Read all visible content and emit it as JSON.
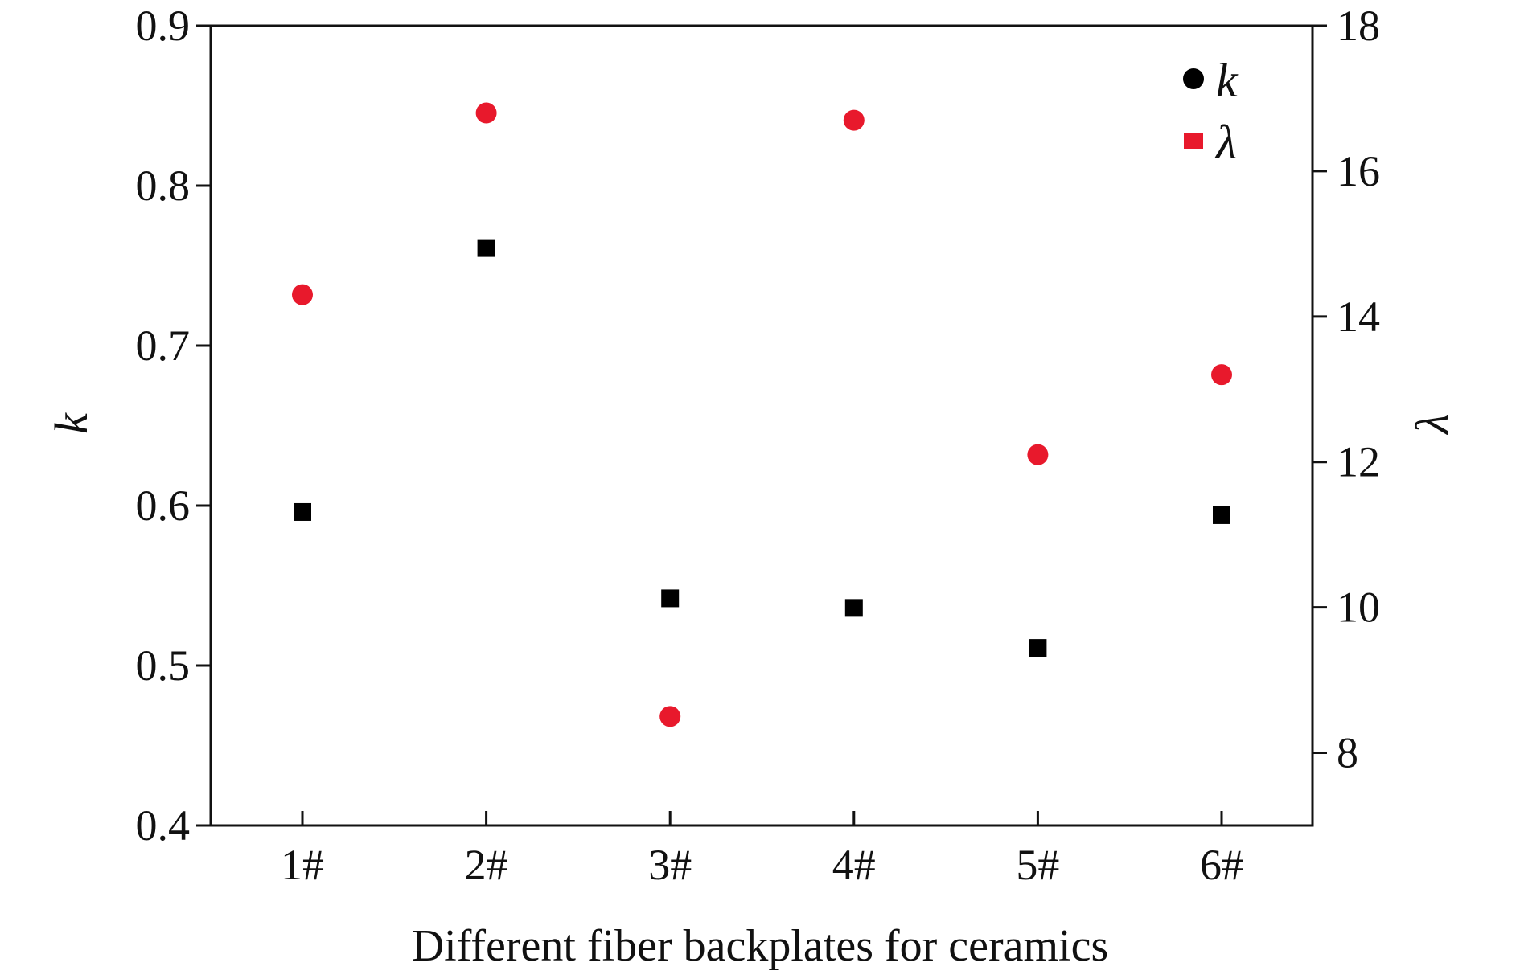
{
  "chart_data": {
    "type": "scatter",
    "categories": [
      "1#",
      "2#",
      "3#",
      "4#",
      "5#",
      "6#"
    ],
    "xlabel": "Different fiber backplates for ceramics",
    "ylabel_left": "k",
    "ylabel_right": "λ",
    "ylim_left": [
      0.4,
      0.9
    ],
    "yticks_left": [
      "0.4",
      "0.5",
      "0.6",
      "0.7",
      "0.8",
      "0.9"
    ],
    "ylim_right": [
      7,
      18
    ],
    "yticks_right": [
      "8",
      "10",
      "12",
      "14",
      "16",
      "18"
    ],
    "grid": false,
    "legend": {
      "position": "top-right",
      "entries": [
        "k",
        "λ"
      ]
    },
    "series": [
      {
        "name": "k",
        "axis": "left",
        "marker": "square",
        "color": "#000000",
        "values": [
          0.596,
          0.761,
          0.542,
          0.536,
          0.511,
          0.594
        ]
      },
      {
        "name": "λ",
        "axis": "right",
        "marker": "circle",
        "color": "#e8192c",
        "values": [
          14.3,
          16.8,
          8.5,
          16.7,
          12.1,
          13.2
        ]
      }
    ]
  }
}
